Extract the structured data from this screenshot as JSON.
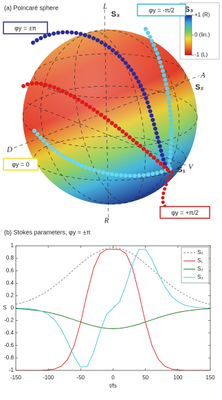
{
  "chart_data": [
    {
      "type": "sphere",
      "title": "(a) Poincaré sphere",
      "axis_labels": {
        "top": "L",
        "bottom": "R",
        "a": "A",
        "d": "D",
        "v": "V",
        "s1": "S₁",
        "s2": "S₂",
        "s3": "S₃"
      },
      "annotations": [
        {
          "text": "φy = ±π",
          "color": "#2a2a9a"
        },
        {
          "text": "φy = -π/2",
          "color": "#30b8dc"
        },
        {
          "text": "φy = 0",
          "color": "#e8e020"
        },
        {
          "text": "φy = +π/2",
          "color": "#d02020"
        }
      ],
      "colorbar": {
        "title": "S₃",
        "clim": [
          -1,
          1
        ],
        "ticks": [
          {
            "value": 1,
            "label": "+1 (R)"
          },
          {
            "value": 0,
            "label": "0 (lin.)"
          },
          {
            "value": -1,
            "label": "-1 (L)"
          }
        ],
        "colormap": [
          "#c81010",
          "#f07a20",
          "#f0e030",
          "#70c860",
          "#30b0e0",
          "#1a2a9a"
        ]
      }
    },
    {
      "type": "line",
      "title": "(b) Stokes parameters, φy = ±π",
      "xlabel": "t/fs",
      "ylabel": "S",
      "x": [
        -150,
        -140,
        -130,
        -120,
        -110,
        -100,
        -90,
        -80,
        -70,
        -60,
        -50,
        -40,
        -30,
        -20,
        -10,
        0,
        10,
        20,
        30,
        40,
        50,
        60,
        70,
        80,
        90,
        100,
        110,
        120,
        130,
        140,
        150
      ],
      "series": [
        {
          "name": "S₀",
          "color": "#888888",
          "dash": "3 2",
          "values": [
            0.06,
            0.086,
            0.12,
            0.164,
            0.218,
            0.282,
            0.357,
            0.44,
            0.53,
            0.622,
            0.712,
            0.796,
            0.868,
            0.923,
            0.958,
            0.97,
            0.958,
            0.923,
            0.868,
            0.796,
            0.712,
            0.622,
            0.53,
            0.44,
            0.357,
            0.282,
            0.218,
            0.164,
            0.12,
            0.086,
            0.06
          ]
        },
        {
          "name": "S₁",
          "color": "#e02020",
          "values": [
            -1,
            -1,
            -1,
            -0.999,
            -0.998,
            -0.993,
            -0.977,
            -0.933,
            -0.824,
            -0.599,
            -0.231,
            0.234,
            0.642,
            0.875,
            0.94,
            0.944,
            0.94,
            0.875,
            0.642,
            0.234,
            -0.231,
            -0.599,
            -0.824,
            -0.933,
            -0.977,
            -0.993,
            -0.998,
            -0.999,
            -1,
            -1,
            -1
          ]
        },
        {
          "name": "S₂",
          "color": "#207020",
          "values": [
            -0.01,
            -0.015,
            -0.024,
            -0.035,
            -0.05,
            -0.069,
            -0.093,
            -0.121,
            -0.153,
            -0.188,
            -0.223,
            -0.257,
            -0.287,
            -0.31,
            -0.325,
            -0.33,
            -0.325,
            -0.31,
            -0.287,
            -0.257,
            -0.223,
            -0.188,
            -0.153,
            -0.121,
            -0.093,
            -0.069,
            -0.05,
            -0.035,
            -0.024,
            -0.015,
            -0.01
          ]
        },
        {
          "name": "S₃",
          "color": "#40c8c8",
          "values": [
            -0.002,
            -0.004,
            -0.01,
            -0.023,
            -0.05,
            -0.101,
            -0.193,
            -0.34,
            -0.545,
            -0.778,
            -0.947,
            -0.937,
            -0.711,
            -0.373,
            -0.1,
            0,
            0.1,
            0.373,
            0.711,
            0.937,
            0.947,
            0.778,
            0.545,
            0.34,
            0.193,
            0.101,
            0.05,
            0.023,
            0.01,
            0.004,
            0.002
          ]
        }
      ],
      "xlim": [
        -150,
        150
      ],
      "xticks": [
        -150,
        -100,
        -50,
        0,
        50,
        100,
        150
      ],
      "ylim": [
        -1,
        1
      ],
      "yticks": [
        -1,
        -0.8,
        -0.6,
        -0.4,
        -0.2,
        0,
        0.2,
        0.4,
        0.6,
        0.8,
        1
      ],
      "grid": false,
      "legend": "top-right"
    }
  ]
}
